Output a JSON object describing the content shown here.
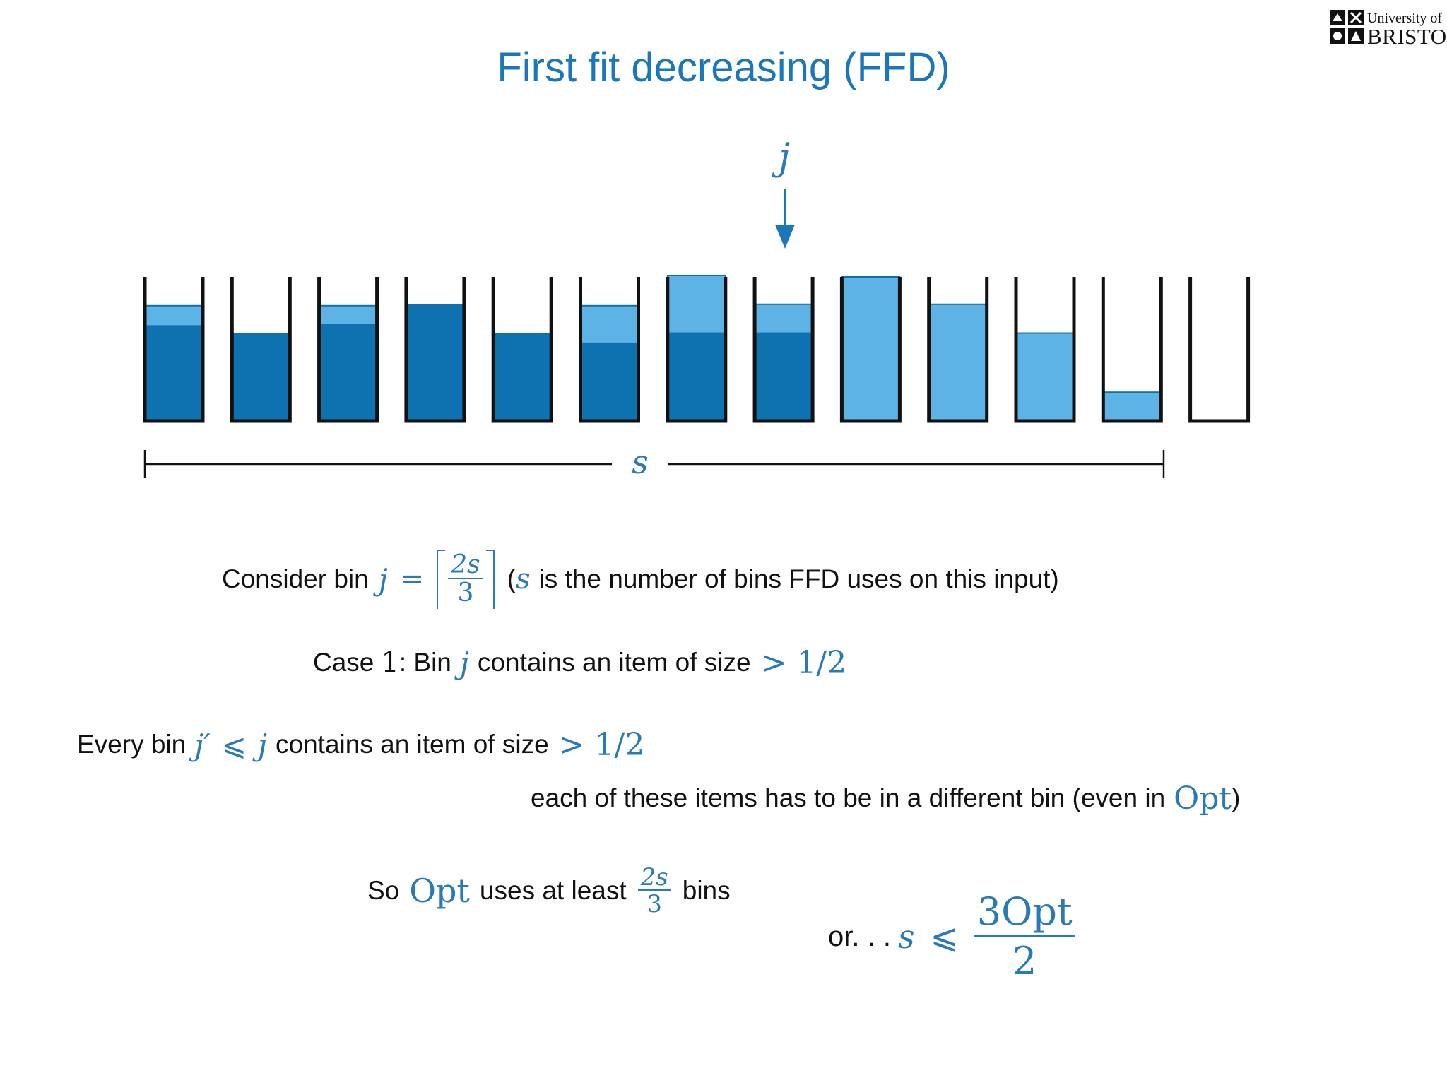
{
  "slide": {
    "title": "First fit decreasing (FFD)",
    "logo": {
      "line1": "University of",
      "line2": "BRISTOL"
    }
  },
  "diagram": {
    "pointer_label": "j",
    "span_label": "s",
    "colors": {
      "dark": "#0e72b0",
      "light": "#5db3e6",
      "outline": "#111111",
      "accent": "#1b77bb"
    },
    "bins": [
      {
        "dark": 0.66,
        "light": 0.14
      },
      {
        "dark": 0.61,
        "light": 0.0
      },
      {
        "dark": 0.67,
        "light": 0.13
      },
      {
        "dark": 0.81,
        "light": 0.0
      },
      {
        "dark": 0.61,
        "light": 0.0
      },
      {
        "dark": 0.54,
        "light": 0.26
      },
      {
        "dark": 0.61,
        "light": 0.4
      },
      {
        "dark": 0.61,
        "light": 0.2
      },
      {
        "dark": 0.0,
        "light": 1.0
      },
      {
        "dark": 0.0,
        "light": 0.81
      },
      {
        "dark": 0.0,
        "light": 0.61
      },
      {
        "dark": 0.0,
        "light": 0.2
      },
      {
        "dark": 0.0,
        "light": 0.0
      }
    ]
  },
  "text": {
    "consider": {
      "prefix": "Consider bin",
      "j": "j",
      "eq": "=",
      "num": "2s",
      "den": "3",
      "paren_open": "(",
      "s": "s",
      "suffix": "is the number of bins FFD uses on this input)"
    },
    "case1": {
      "prefix": "Case",
      "num": "1",
      "mid": ": Bin",
      "j": "j",
      "suffix": "contains an item of size",
      "gt": ">",
      "half": "1/2"
    },
    "every": {
      "prefix": "Every bin",
      "jp": "j′",
      "le": "⩽",
      "j": "j",
      "suffix": "contains an item of size",
      "gt": ">",
      "half": "1/2"
    },
    "each": {
      "prefix": "each of these items has to be in a different bin (even in",
      "opt": "Opt",
      "close": ")"
    },
    "so": {
      "prefix": "So",
      "opt": "Opt",
      "mid": "uses at least",
      "num": "2s",
      "den": "3",
      "suffix": "bins"
    },
    "or": {
      "prefix": "or. . .",
      "s": "s",
      "le": "⩽",
      "num": "3Opt",
      "den": "2"
    }
  }
}
